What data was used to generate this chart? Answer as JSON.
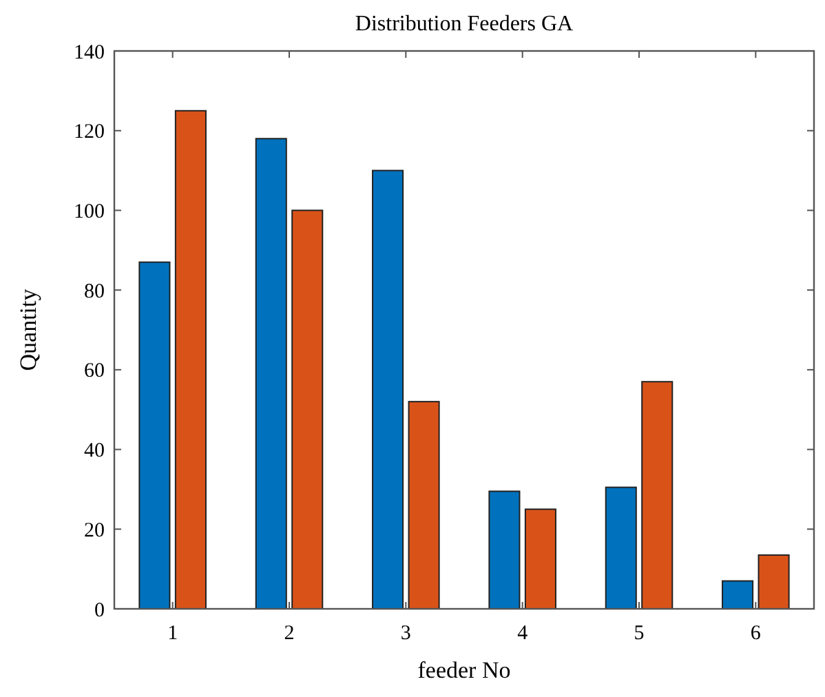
{
  "chart_data": {
    "type": "bar",
    "title": "Distribution Feeders GA",
    "xlabel": "feeder No",
    "ylabel": "Quantity",
    "categories": [
      "1",
      "2",
      "3",
      "4",
      "5",
      "6"
    ],
    "series": [
      {
        "color": "#0072bd",
        "values": [
          87,
          118,
          110,
          29.5,
          30.5,
          7
        ]
      },
      {
        "color": "#d95319",
        "values": [
          125,
          100,
          52,
          25,
          57,
          13.5
        ]
      }
    ],
    "ylim": [
      0,
      140
    ],
    "yticks": [
      0,
      20,
      40,
      60,
      80,
      100,
      120,
      140
    ],
    "grid": false
  }
}
